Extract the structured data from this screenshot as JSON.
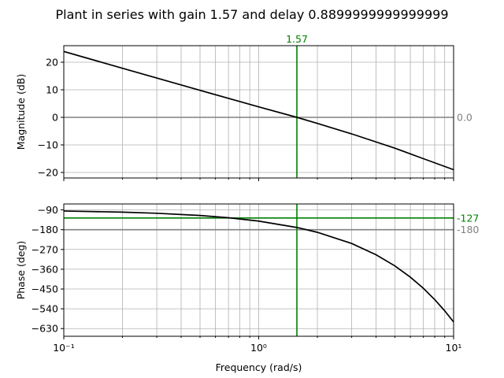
{
  "figure": {
    "title": "Plant in series with gain 1.57 and delay 0.8899999999999999"
  },
  "chart_data": [
    {
      "type": "line",
      "panel": "magnitude",
      "xscale": "log",
      "xlim": [
        0.1,
        10
      ],
      "ylim": [
        -22,
        26
      ],
      "ylabel": "Magnitude (dB)",
      "yticks": [
        20,
        10,
        0,
        -10,
        -20
      ],
      "ytick_labels": [
        "20",
        "10",
        "0",
        "−10",
        "−20"
      ],
      "grid": true,
      "series": [
        {
          "x": [
            0.1,
            0.2,
            0.5,
            1.0,
            1.57,
            2.0,
            3.0,
            5.0,
            7.0,
            10.0
          ],
          "y": [
            23.9,
            17.8,
            9.8,
            3.8,
            0.0,
            -2.2,
            -6.0,
            -11.2,
            -15.0,
            -19.0
          ],
          "color": "#000000"
        }
      ],
      "reference_lines": [
        {
          "orientation": "horizontal",
          "value": 0.0,
          "label": "0.0",
          "color": "#808080"
        },
        {
          "orientation": "vertical",
          "value": 1.57,
          "label": "1.57",
          "color": "#008000"
        }
      ]
    },
    {
      "type": "line",
      "panel": "phase",
      "xscale": "log",
      "xlim": [
        0.1,
        10
      ],
      "ylim": [
        -665,
        -63
      ],
      "xlabel": "Frequency (rad/s)",
      "ylabel": "Phase (deg)",
      "yticks": [
        -90,
        -180,
        -270,
        -360,
        -450,
        -540,
        -630
      ],
      "ytick_labels": [
        "−90",
        "−180",
        "−270",
        "−360",
        "−450",
        "−540",
        "−630"
      ],
      "xtick_labels": [
        "10⁻¹",
        "10⁰",
        "10¹"
      ],
      "grid": true,
      "series": [
        {
          "x": [
            0.1,
            0.2,
            0.3,
            0.5,
            0.7,
            1.0,
            1.57,
            2.0,
            3.0,
            4.0,
            5.0,
            6.0,
            7.0,
            8.0,
            9.0,
            10.0
          ],
          "y": [
            -95.1,
            -100.2,
            -105.3,
            -115.5,
            -125.7,
            -141.0,
            -170.0,
            -192.0,
            -243.0,
            -294.0,
            -345.0,
            -396.0,
            -447.0,
            -498.0,
            -549.0,
            -600.0
          ],
          "color": "#000000"
        }
      ],
      "reference_lines": [
        {
          "orientation": "horizontal",
          "value": -180,
          "label": "-180",
          "color": "#808080"
        },
        {
          "orientation": "horizontal",
          "value": -127,
          "label": "-127",
          "color": "#008000"
        },
        {
          "orientation": "vertical",
          "value": 1.57,
          "label": "",
          "color": "#008000"
        }
      ]
    }
  ]
}
